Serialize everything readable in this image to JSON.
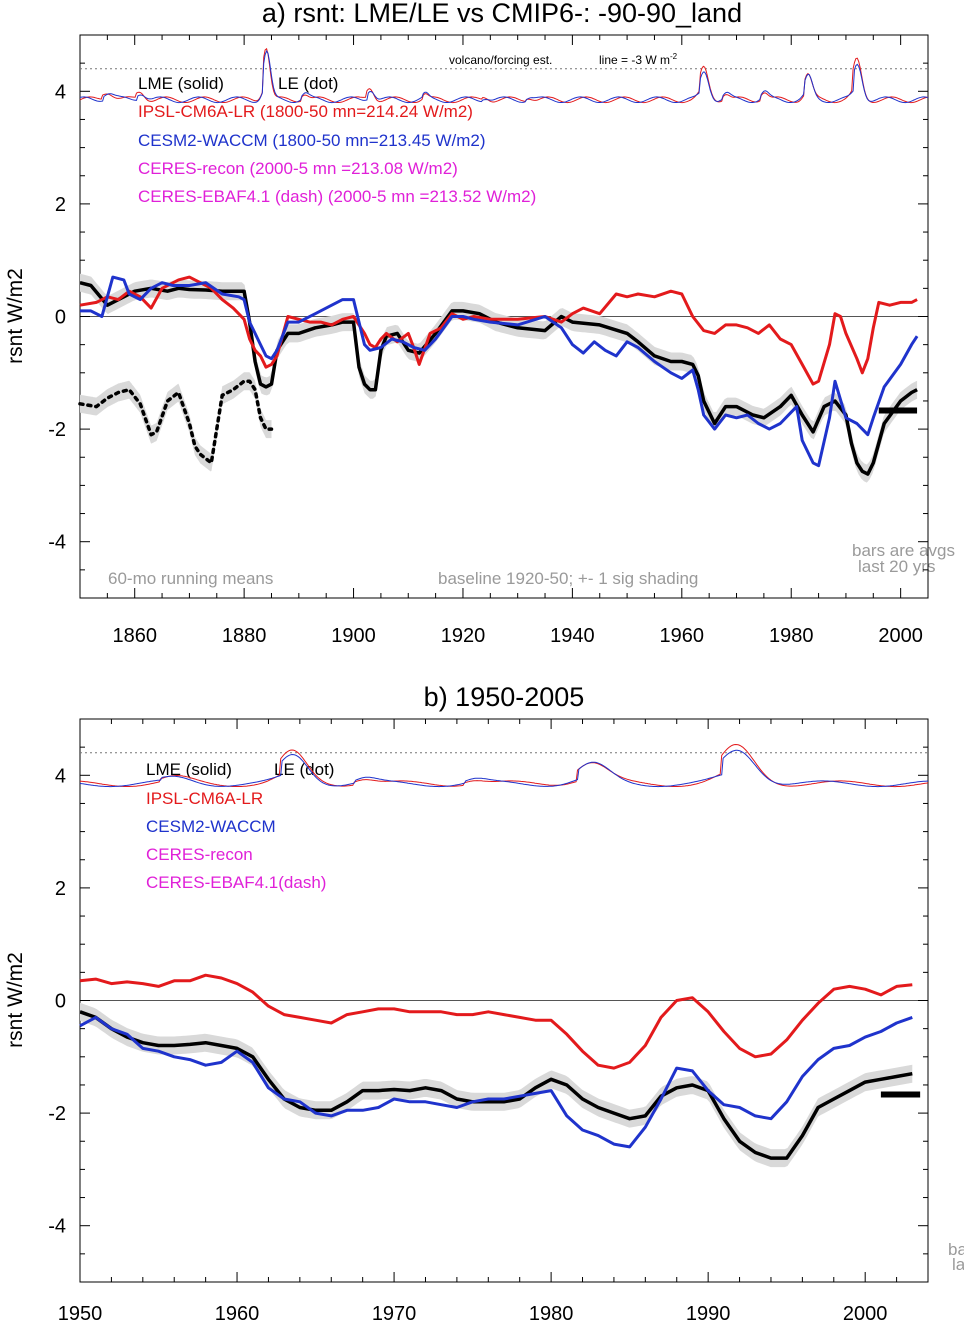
{
  "colors": {
    "lme": "#000000",
    "ipsl": "#e31a1c",
    "cesm": "#1f33cc",
    "ceres": "#e020d8",
    "shade": "#d9d9d9",
    "note": "#9a9a9a"
  },
  "chart_data": [
    {
      "type": "line",
      "title": "a) rsnt: LME/LE vs CMIP6-: -90-90_land",
      "ylabel": "rsnt W/m2",
      "xlim": [
        1850,
        2005
      ],
      "ylim": [
        -5,
        5
      ],
      "xticks": [
        "1860",
        "1880",
        "1900",
        "1920",
        "1940",
        "1960",
        "1980",
        "2000"
      ],
      "yticks": [
        "4",
        "2",
        "0",
        "-2",
        "-4"
      ],
      "legend": {
        "header_solid": "LME (solid)",
        "header_dot": "LE (dot)",
        "entries": [
          "IPSL-CM6A-LR (1800-50 mn=214.24 W/m2)",
          "CESM2-WACCM (1800-50 mn=213.45 W/m2)",
          "CERES-recon (2000-5 mn =213.08 W/m2)",
          "CERES-EBAF4.1 (dash) (2000-5 mn =213.52 W/m2)"
        ]
      },
      "notes": {
        "volcano": "volcano/forcing est.",
        "line": "line = -3 W m",
        "running": "60-mo running means",
        "baseline": "baseline 1920-50; +- 1 sig shading",
        "bars1": "bars are avgs",
        "bars2": "last 20 yrs"
      },
      "volcano_ref_y": 4.4,
      "series": [
        {
          "name": "LME (solid)",
          "x": [
            1850,
            1852,
            1855,
            1858,
            1860,
            1863,
            1866,
            1868,
            1870,
            1873,
            1876,
            1880,
            1881,
            1882,
            1883,
            1884,
            1885,
            1886,
            1888,
            1890,
            1893,
            1896,
            1898,
            1900,
            1901,
            1902,
            1903,
            1904,
            1905,
            1906,
            1908,
            1910,
            1912,
            1915,
            1918,
            1920,
            1923,
            1926,
            1930,
            1935,
            1938,
            1940,
            1945,
            1950,
            1952,
            1955,
            1958,
            1960,
            1962,
            1963,
            1964,
            1966,
            1968,
            1970,
            1973,
            1975,
            1978,
            1980,
            1982,
            1984,
            1986,
            1988,
            1990,
            1991,
            1992,
            1993,
            1994,
            1995,
            1997,
            2000,
            2002,
            2003
          ],
          "y": [
            0.6,
            0.55,
            0.2,
            0.35,
            0.45,
            0.5,
            0.45,
            0.5,
            0.48,
            0.47,
            0.45,
            0.45,
            -0.1,
            -0.8,
            -1.2,
            -1.25,
            -1.2,
            -0.6,
            -0.3,
            -0.3,
            -0.2,
            -0.15,
            -0.1,
            -0.1,
            -0.9,
            -1.2,
            -1.3,
            -1.3,
            -0.6,
            -0.35,
            -0.3,
            -0.6,
            -0.65,
            -0.3,
            0.1,
            0.1,
            0.05,
            -0.1,
            -0.2,
            -0.25,
            0.0,
            -0.1,
            -0.15,
            -0.3,
            -0.45,
            -0.7,
            -0.8,
            -0.8,
            -0.85,
            -1.05,
            -1.5,
            -1.9,
            -1.6,
            -1.6,
            -1.75,
            -1.8,
            -1.6,
            -1.4,
            -1.75,
            -2.05,
            -1.6,
            -1.5,
            -1.75,
            -2.25,
            -2.6,
            -2.75,
            -2.8,
            -2.6,
            -1.9,
            -1.5,
            -1.35,
            -1.3
          ],
          "style": "solid"
        },
        {
          "name": "LE (dot)",
          "x": [
            1850,
            1853,
            1855,
            1857,
            1859,
            1861,
            1863,
            1864,
            1866,
            1868,
            1870,
            1871,
            1872,
            1874,
            1876,
            1878,
            1880,
            1881,
            1882,
            1883,
            1884,
            1885
          ],
          "y": [
            -1.55,
            -1.6,
            -1.45,
            -1.35,
            -1.3,
            -1.55,
            -2.1,
            -2.05,
            -1.5,
            -1.35,
            -1.9,
            -2.3,
            -2.45,
            -2.6,
            -1.4,
            -1.3,
            -1.15,
            -1.15,
            -1.3,
            -1.8,
            -2.0,
            -2.0
          ],
          "style": "dot"
        },
        {
          "name": "IPSL-CM6A-LR",
          "x": [
            1850,
            1853,
            1855,
            1857,
            1859,
            1861,
            1863,
            1865,
            1868,
            1870,
            1872,
            1874,
            1876,
            1878,
            1880,
            1881,
            1882,
            1883,
            1884,
            1885,
            1886,
            1888,
            1890,
            1892,
            1894,
            1896,
            1898,
            1900,
            1902,
            1903,
            1904,
            1905,
            1906,
            1908,
            1910,
            1911,
            1912,
            1914,
            1916,
            1918,
            1920,
            1922,
            1925,
            1930,
            1935,
            1938,
            1940,
            1942,
            1945,
            1948,
            1950,
            1952,
            1955,
            1958,
            1960,
            1962,
            1964,
            1966,
            1968,
            1970,
            1972,
            1974,
            1976,
            1978,
            1980,
            1982,
            1984,
            1985,
            1987,
            1988,
            1989,
            1990,
            1992,
            1993,
            1994,
            1995,
            1996,
            1998,
            2000,
            2002,
            2003
          ],
          "y": [
            0.2,
            0.25,
            0.35,
            0.3,
            0.45,
            0.35,
            0.15,
            0.5,
            0.65,
            0.7,
            0.6,
            0.5,
            0.3,
            0.15,
            -0.05,
            -0.4,
            -0.6,
            -0.7,
            -0.9,
            -0.85,
            -0.7,
            0.0,
            -0.05,
            -0.1,
            -0.1,
            -0.15,
            -0.05,
            0.0,
            -0.3,
            -0.5,
            -0.55,
            -0.4,
            -0.3,
            -0.45,
            -0.3,
            -0.55,
            -0.85,
            -0.3,
            -0.2,
            0.05,
            -0.05,
            0.0,
            -0.05,
            -0.05,
            0.0,
            -0.1,
            0.05,
            0.15,
            0.05,
            0.4,
            0.35,
            0.4,
            0.35,
            0.45,
            0.4,
            0.0,
            -0.25,
            -0.3,
            -0.15,
            -0.15,
            -0.2,
            -0.3,
            -0.15,
            -0.4,
            -0.5,
            -0.85,
            -1.2,
            -1.15,
            -0.5,
            0.05,
            0.0,
            -0.3,
            -0.75,
            -1.0,
            -0.75,
            -0.2,
            0.25,
            0.2,
            0.25,
            0.25,
            0.3
          ],
          "style": "solid"
        },
        {
          "name": "CESM2-WACCM",
          "x": [
            1850,
            1852,
            1854,
            1856,
            1858,
            1859,
            1861,
            1863,
            1865,
            1867,
            1870,
            1873,
            1876,
            1879,
            1880,
            1881,
            1882,
            1883,
            1884,
            1885,
            1886,
            1888,
            1890,
            1893,
            1896,
            1898,
            1900,
            1902,
            1903,
            1905,
            1907,
            1909,
            1911,
            1913,
            1915,
            1918,
            1920,
            1922,
            1925,
            1930,
            1935,
            1938,
            1940,
            1942,
            1944,
            1946,
            1948,
            1950,
            1952,
            1955,
            1958,
            1960,
            1962,
            1963,
            1964,
            1966,
            1968,
            1970,
            1972,
            1974,
            1976,
            1978,
            1980,
            1981,
            1982,
            1984,
            1985,
            1987,
            1988,
            1990,
            1992,
            1993,
            1994,
            1995,
            1997,
            2000,
            2002,
            2003
          ],
          "y": [
            0.1,
            0.1,
            0.0,
            0.7,
            0.65,
            0.4,
            0.3,
            0.5,
            0.6,
            0.55,
            0.55,
            0.6,
            0.4,
            0.35,
            0.3,
            -0.1,
            -0.3,
            -0.5,
            -0.7,
            -0.75,
            -0.6,
            -0.1,
            -0.1,
            0.05,
            0.2,
            0.3,
            0.3,
            -0.5,
            -0.6,
            -0.55,
            -0.4,
            -0.45,
            -0.55,
            -0.6,
            -0.4,
            0.0,
            0.0,
            -0.05,
            -0.1,
            -0.15,
            0.0,
            -0.2,
            -0.5,
            -0.65,
            -0.45,
            -0.6,
            -0.7,
            -0.45,
            -0.55,
            -0.8,
            -1.0,
            -1.1,
            -0.95,
            -1.3,
            -1.75,
            -2.0,
            -1.75,
            -1.8,
            -1.75,
            -1.9,
            -2.0,
            -1.9,
            -1.7,
            -1.6,
            -2.2,
            -2.6,
            -2.65,
            -1.8,
            -1.15,
            -1.8,
            -1.9,
            -2.0,
            -2.1,
            -1.8,
            -1.25,
            -0.85,
            -0.5,
            -0.35
          ],
          "style": "solid"
        }
      ],
      "bars": [
        {
          "x0": 1996,
          "x1": 2003,
          "y": -1.67
        }
      ]
    },
    {
      "type": "line",
      "title": "b) 1950-2005",
      "ylabel": "rsnt W/m2",
      "xlim": [
        1950,
        2004
      ],
      "ylim": [
        -5,
        5
      ],
      "xticks": [
        "1950",
        "1960",
        "1970",
        "1980",
        "1990",
        "2000"
      ],
      "yticks": [
        "4",
        "2",
        "0",
        "-2",
        "-4"
      ],
      "legend": {
        "header_solid": "LME (solid)",
        "header_dot": "LE (dot)",
        "entries": [
          "IPSL-CM6A-LR",
          "CESM2-WACCM",
          "CERES-recon",
          "CERES-EBAF4.1(dash)"
        ]
      },
      "notes": {
        "bars1": "ba",
        "bars2": "la"
      },
      "volcano_ref_y": 4.4,
      "series": [
        {
          "name": "LME (solid)",
          "x": [
            1950,
            1951,
            1952,
            1953,
            1954,
            1955,
            1956,
            1957,
            1958,
            1959,
            1960,
            1961,
            1962,
            1963,
            1964,
            1965,
            1966,
            1967,
            1968,
            1969,
            1970,
            1971,
            1972,
            1973,
            1974,
            1975,
            1976,
            1977,
            1978,
            1979,
            1980,
            1981,
            1982,
            1983,
            1984,
            1985,
            1986,
            1987,
            1988,
            1989,
            1990,
            1991,
            1992,
            1993,
            1994,
            1995,
            1996,
            1997,
            1998,
            1999,
            2000,
            2001,
            2002,
            2003
          ],
          "y": [
            -0.2,
            -0.3,
            -0.5,
            -0.65,
            -0.75,
            -0.8,
            -0.8,
            -0.78,
            -0.75,
            -0.8,
            -0.85,
            -1.0,
            -1.4,
            -1.75,
            -1.9,
            -1.95,
            -1.95,
            -1.8,
            -1.6,
            -1.6,
            -1.58,
            -1.6,
            -1.55,
            -1.6,
            -1.75,
            -1.8,
            -1.8,
            -1.8,
            -1.75,
            -1.55,
            -1.4,
            -1.5,
            -1.75,
            -1.9,
            -2.0,
            -2.1,
            -2.05,
            -1.7,
            -1.55,
            -1.5,
            -1.6,
            -2.1,
            -2.5,
            -2.7,
            -2.8,
            -2.8,
            -2.4,
            -1.9,
            -1.75,
            -1.6,
            -1.45,
            -1.4,
            -1.35,
            -1.3
          ],
          "style": "solid"
        },
        {
          "name": "IPSL-CM6A-LR",
          "x": [
            1950,
            1951,
            1952,
            1953,
            1954,
            1955,
            1956,
            1957,
            1958,
            1959,
            1960,
            1961,
            1962,
            1963,
            1964,
            1965,
            1966,
            1967,
            1968,
            1969,
            1970,
            1971,
            1972,
            1973,
            1974,
            1975,
            1976,
            1977,
            1978,
            1979,
            1980,
            1981,
            1982,
            1983,
            1984,
            1985,
            1986,
            1987,
            1988,
            1989,
            1990,
            1991,
            1992,
            1993,
            1994,
            1995,
            1996,
            1997,
            1998,
            1999,
            2000,
            2001,
            2002,
            2003
          ],
          "y": [
            0.35,
            0.38,
            0.3,
            0.33,
            0.3,
            0.25,
            0.35,
            0.35,
            0.45,
            0.4,
            0.3,
            0.15,
            -0.1,
            -0.25,
            -0.3,
            -0.35,
            -0.4,
            -0.25,
            -0.2,
            -0.15,
            -0.15,
            -0.2,
            -0.2,
            -0.2,
            -0.25,
            -0.25,
            -0.2,
            -0.25,
            -0.3,
            -0.35,
            -0.35,
            -0.6,
            -0.9,
            -1.15,
            -1.2,
            -1.1,
            -0.8,
            -0.3,
            0.0,
            0.05,
            -0.2,
            -0.55,
            -0.85,
            -1.0,
            -0.95,
            -0.7,
            -0.35,
            -0.05,
            0.2,
            0.25,
            0.2,
            0.1,
            0.25,
            0.28
          ],
          "style": "solid"
        },
        {
          "name": "CESM2-WACCM",
          "x": [
            1950,
            1951,
            1952,
            1953,
            1954,
            1955,
            1956,
            1957,
            1958,
            1959,
            1960,
            1961,
            1962,
            1963,
            1964,
            1965,
            1966,
            1967,
            1968,
            1969,
            1970,
            1971,
            1972,
            1973,
            1974,
            1975,
            1976,
            1977,
            1978,
            1979,
            1980,
            1981,
            1982,
            1983,
            1984,
            1985,
            1986,
            1987,
            1988,
            1989,
            1990,
            1991,
            1992,
            1993,
            1994,
            1995,
            1996,
            1997,
            1998,
            1999,
            2000,
            2001,
            2002,
            2003
          ],
          "y": [
            -0.45,
            -0.3,
            -0.5,
            -0.6,
            -0.85,
            -0.9,
            -1.0,
            -1.05,
            -1.15,
            -1.1,
            -0.9,
            -1.1,
            -1.55,
            -1.75,
            -1.8,
            -2.0,
            -2.05,
            -1.95,
            -1.95,
            -1.9,
            -1.75,
            -1.8,
            -1.8,
            -1.85,
            -1.9,
            -1.8,
            -1.75,
            -1.75,
            -1.7,
            -1.65,
            -1.6,
            -2.05,
            -2.3,
            -2.4,
            -2.55,
            -2.6,
            -2.25,
            -1.75,
            -1.2,
            -1.25,
            -1.6,
            -1.85,
            -1.9,
            -2.05,
            -2.1,
            -1.8,
            -1.35,
            -1.05,
            -0.85,
            -0.8,
            -0.65,
            -0.55,
            -0.4,
            -0.3
          ],
          "style": "solid"
        }
      ],
      "bars": [
        {
          "x0": 2001,
          "x1": 2003.5,
          "y": -1.67
        }
      ]
    }
  ]
}
